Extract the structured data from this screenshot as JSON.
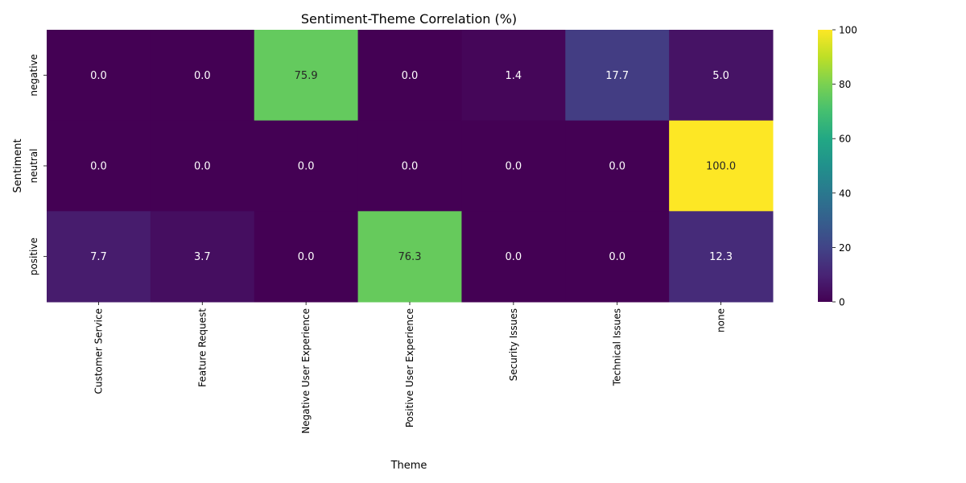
{
  "chart_data": {
    "type": "heatmap",
    "title": "Sentiment-Theme Correlation (%)",
    "xlabel": "Theme",
    "ylabel": "Sentiment",
    "x_categories": [
      "Customer Service",
      "Feature Request",
      "Negative User Experience",
      "Positive User Experience",
      "Security Issues",
      "Technical Issues",
      "none"
    ],
    "y_categories": [
      "negative",
      "neutral",
      "positive"
    ],
    "values": [
      [
        0.0,
        0.0,
        75.9,
        0.0,
        1.4,
        17.7,
        5.0
      ],
      [
        0.0,
        0.0,
        0.0,
        0.0,
        0.0,
        0.0,
        100.0
      ],
      [
        7.7,
        3.7,
        0.0,
        76.3,
        0.0,
        0.0,
        12.3
      ]
    ],
    "colormap": "viridis",
    "color_range": [
      0,
      100
    ],
    "colorbar_ticks": [
      0,
      20,
      40,
      60,
      80,
      100
    ],
    "annotation_format": "0.0",
    "legend": "colorbar-right"
  }
}
